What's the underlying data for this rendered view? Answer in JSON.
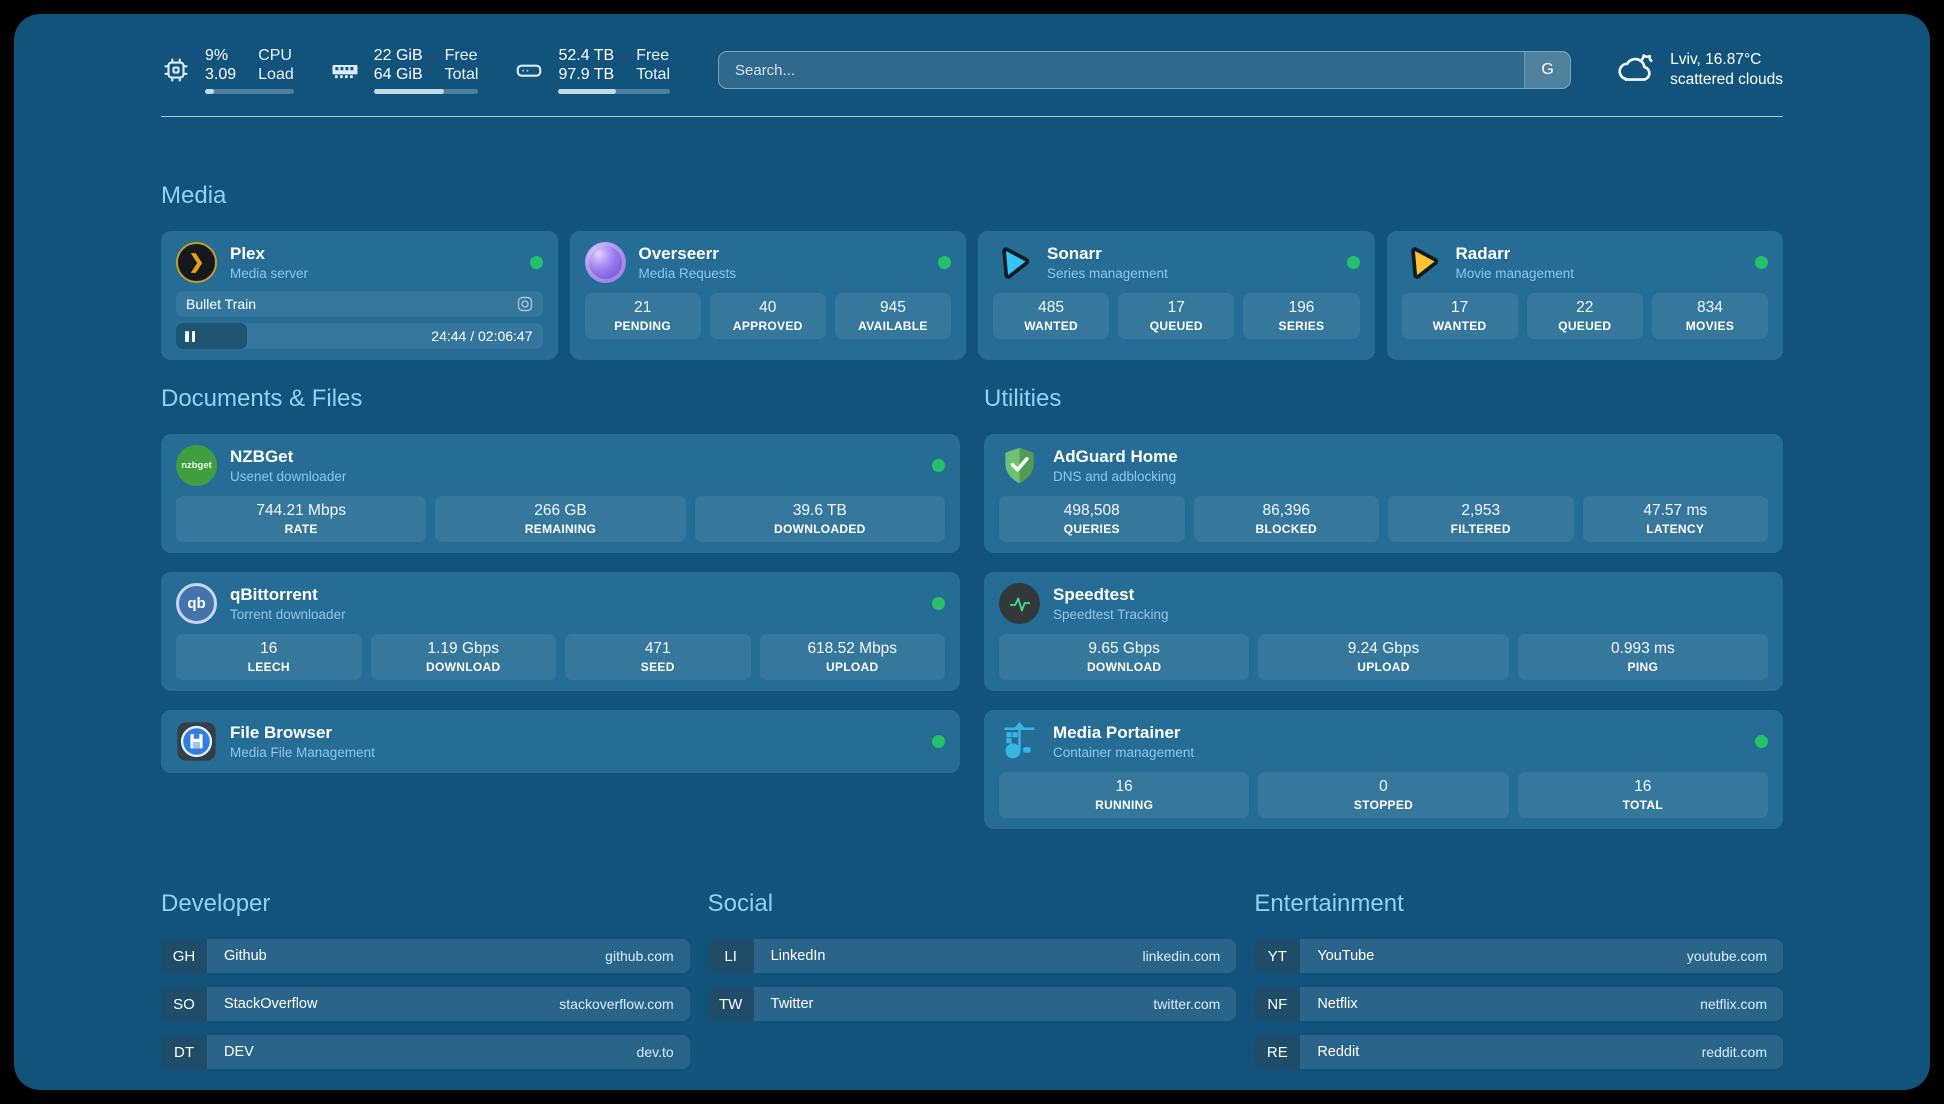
{
  "colors": {
    "page_background": "#000000",
    "dashboard_background": "#11537b",
    "card_background": "#266d95",
    "accent_heading": "#8fd2f3",
    "subtitle_text": "#8ec6e8",
    "status_online": "#25c16a",
    "url_text": "#d5ecf9",
    "plex_brand": "#e5a00d",
    "sonarr_brand": "#35c5f4",
    "radarr_brand": "#ffc230",
    "nzbget_brand": "#3f9e3f",
    "qbittorrent_brand": "#4573ae",
    "speedtest_pulse": "#41d98a",
    "adguard_brand": "#63b863",
    "portainer_brand": "#35b6e5",
    "filebrowser_brand": "#2f7fe0"
  },
  "header": {
    "stats": [
      {
        "icon": "cpu-icon",
        "values": [
          "9%",
          "3.09"
        ],
        "labels": [
          "CPU",
          "Load"
        ],
        "progress_pct": 10
      },
      {
        "icon": "ram-icon",
        "values": [
          "22 GiB",
          "64 GiB"
        ],
        "labels": [
          "Free",
          "Total"
        ],
        "progress_pct": 67
      },
      {
        "icon": "disk-icon",
        "values": [
          "52.4 TB",
          "97.9 TB"
        ],
        "labels": [
          "Free",
          "Total"
        ],
        "progress_pct": 52
      }
    ],
    "search": {
      "placeholder": "Search...",
      "engine_label": "G"
    },
    "weather": {
      "location_temperature": "Lviv, 16.87°C",
      "condition": "scattered clouds"
    }
  },
  "sections": {
    "media": {
      "title": "Media",
      "cards": [
        {
          "name": "Plex",
          "subtitle": "Media server",
          "icon_glyph": "❯",
          "player": {
            "title": "Bullet Train",
            "time": "24:44 / 02:06:47",
            "progress_pct": 19.5
          }
        },
        {
          "name": "Overseerr",
          "subtitle": "Media Requests",
          "stats": [
            {
              "value": "21",
              "label": "PENDING"
            },
            {
              "value": "40",
              "label": "APPROVED"
            },
            {
              "value": "945",
              "label": "AVAILABLE"
            }
          ]
        },
        {
          "name": "Sonarr",
          "subtitle": "Series management",
          "stats": [
            {
              "value": "485",
              "label": "WANTED"
            },
            {
              "value": "17",
              "label": "QUEUED"
            },
            {
              "value": "196",
              "label": "SERIES"
            }
          ]
        },
        {
          "name": "Radarr",
          "subtitle": "Movie management",
          "stats": [
            {
              "value": "17",
              "label": "WANTED"
            },
            {
              "value": "22",
              "label": "QUEUED"
            },
            {
              "value": "834",
              "label": "MOVIES"
            }
          ]
        }
      ]
    },
    "documents": {
      "title": "Documents & Files",
      "cards": [
        {
          "name": "NZBGet",
          "subtitle": "Usenet downloader",
          "icon_text": "nzbget",
          "stats": [
            {
              "value": "744.21 Mbps",
              "label": "RATE"
            },
            {
              "value": "266 GB",
              "label": "REMAINING"
            },
            {
              "value": "39.6 TB",
              "label": "DOWNLOADED"
            }
          ]
        },
        {
          "name": "qBittorrent",
          "subtitle": "Torrent downloader",
          "icon_text": "qb",
          "stats": [
            {
              "value": "16",
              "label": "LEECH"
            },
            {
              "value": "1.19 Gbps",
              "label": "DOWNLOAD"
            },
            {
              "value": "471",
              "label": "SEED"
            },
            {
              "value": "618.52 Mbps",
              "label": "UPLOAD"
            }
          ]
        },
        {
          "name": "File Browser",
          "subtitle": "Media File Management"
        }
      ]
    },
    "utilities": {
      "title": "Utilities",
      "cards": [
        {
          "name": "AdGuard Home",
          "subtitle": "DNS and adblocking",
          "stats": [
            {
              "value": "498,508",
              "label": "QUERIES"
            },
            {
              "value": "86,396",
              "label": "BLOCKED"
            },
            {
              "value": "2,953",
              "label": "FILTERED"
            },
            {
              "value": "47.57 ms",
              "label": "LATENCY"
            }
          ]
        },
        {
          "name": "Speedtest",
          "subtitle": "Speedtest Tracking",
          "stats": [
            {
              "value": "9.65 Gbps",
              "label": "DOWNLOAD"
            },
            {
              "value": "9.24 Gbps",
              "label": "UPLOAD"
            },
            {
              "value": "0.993 ms",
              "label": "PING"
            }
          ]
        },
        {
          "name": "Media Portainer",
          "subtitle": "Container management",
          "stats": [
            {
              "value": "16",
              "label": "RUNNING"
            },
            {
              "value": "0",
              "label": "STOPPED"
            },
            {
              "value": "16",
              "label": "TOTAL"
            }
          ]
        }
      ]
    }
  },
  "bookmarks": [
    {
      "title": "Developer",
      "items": [
        {
          "abbr": "GH",
          "name": "Github",
          "url": "github.com"
        },
        {
          "abbr": "SO",
          "name": "StackOverflow",
          "url": "stackoverflow.com"
        },
        {
          "abbr": "DT",
          "name": "DEV",
          "url": "dev.to"
        }
      ]
    },
    {
      "title": "Social",
      "items": [
        {
          "abbr": "LI",
          "name": "LinkedIn",
          "url": "linkedin.com"
        },
        {
          "abbr": "TW",
          "name": "Twitter",
          "url": "twitter.com"
        }
      ]
    },
    {
      "title": "Entertainment",
      "items": [
        {
          "abbr": "YT",
          "name": "YouTube",
          "url": "youtube.com"
        },
        {
          "abbr": "NF",
          "name": "Netflix",
          "url": "netflix.com"
        },
        {
          "abbr": "RE",
          "name": "Reddit",
          "url": "reddit.com"
        }
      ]
    }
  ]
}
